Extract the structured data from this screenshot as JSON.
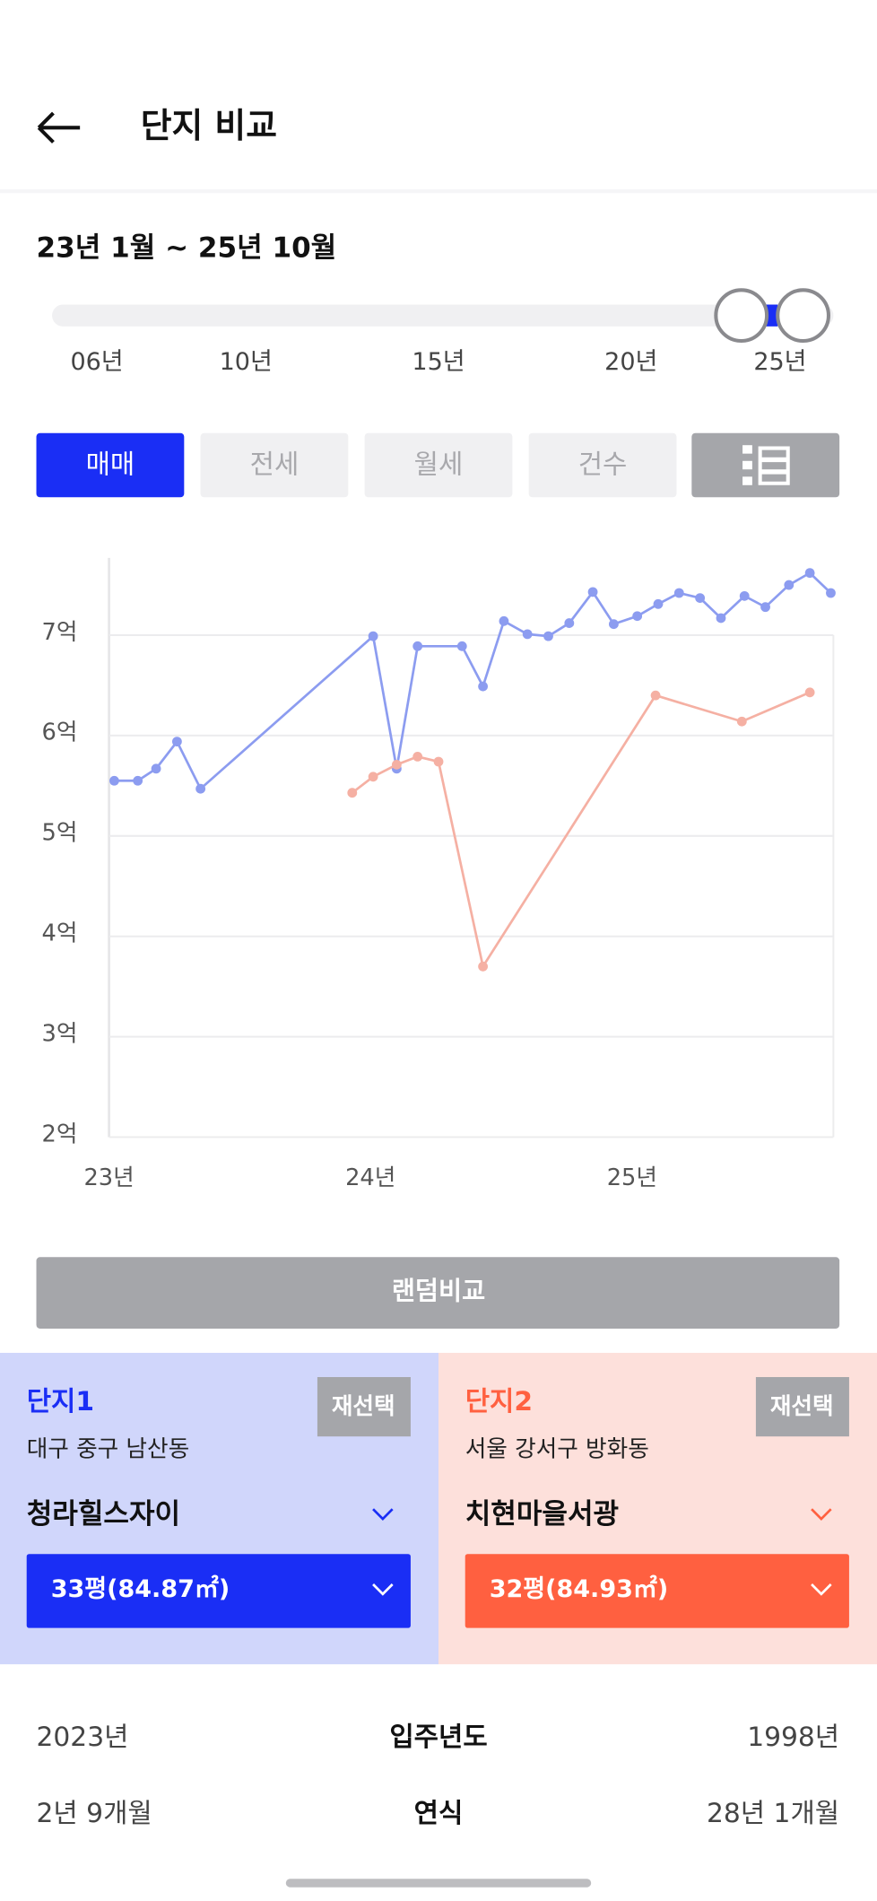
{
  "header": {
    "title": "단지 비교"
  },
  "period": "23년 1월 ~ 25년 10월",
  "slider_labels": [
    "06년",
    "10년",
    "15년",
    "20년",
    "25년"
  ],
  "tabs": [
    "매매",
    "전세",
    "월세",
    "건수"
  ],
  "chart_data": {
    "type": "line",
    "xlim": [
      2023,
      2025.77
    ],
    "xticks": [
      {
        "value": 2023,
        "label": "23년"
      },
      {
        "value": 2024,
        "label": "24년"
      },
      {
        "value": 2025,
        "label": "25년"
      }
    ],
    "ylim": [
      2,
      7.77
    ],
    "yticks": [
      {
        "value": 2,
        "label": "2억"
      },
      {
        "value": 3,
        "label": "3억"
      },
      {
        "value": 4,
        "label": "4억"
      },
      {
        "value": 5,
        "label": "5억"
      },
      {
        "value": 6,
        "label": "6억"
      },
      {
        "value": 7,
        "label": "7억"
      }
    ],
    "grid": true,
    "series": [
      {
        "color": "#8c9cf0",
        "x": [
          2023.02,
          2023.11,
          2023.18,
          2023.26,
          2023.35,
          2024.01,
          2024.1,
          2024.18,
          2024.35,
          2024.43,
          2024.51,
          2024.6,
          2024.68,
          2024.76,
          2024.85,
          2024.93,
          2025.02,
          2025.1,
          2025.18,
          2025.26,
          2025.34,
          2025.43,
          2025.51,
          2025.6,
          2025.68,
          2025.76
        ],
        "values": [
          5.55,
          5.55,
          5.67,
          5.94,
          5.47,
          6.99,
          5.67,
          6.89,
          6.89,
          6.49,
          7.14,
          7.01,
          6.99,
          7.12,
          7.43,
          7.11,
          7.19,
          7.31,
          7.42,
          7.37,
          7.17,
          7.39,
          7.28,
          7.5,
          7.62,
          7.42
        ]
      },
      {
        "color": "#f5b0a3",
        "x": [
          2023.93,
          2024.01,
          2024.1,
          2024.18,
          2024.26,
          2024.43,
          2025.09,
          2025.42,
          2025.68
        ],
        "values": [
          5.43,
          5.59,
          5.71,
          5.79,
          5.74,
          3.7,
          6.4,
          6.14,
          6.43
        ]
      }
    ]
  },
  "random_button": "랜덤비교",
  "complexes": [
    {
      "label": "단지1",
      "reselect": "재선택",
      "location": "대구 중구 남산동",
      "name": "청라힐스자이",
      "size": "33평(84.87㎡)"
    },
    {
      "label": "단지2",
      "reselect": "재선택",
      "location": "서울 강서구 방화동",
      "name": "치현마을서광",
      "size": "32평(84.93㎡)"
    }
  ],
  "comparison": [
    {
      "left": "2023년",
      "label": "입주년도",
      "right": "1998년"
    },
    {
      "left": "2년 9개월",
      "label": "연식",
      "right": "28년 1개월"
    }
  ]
}
